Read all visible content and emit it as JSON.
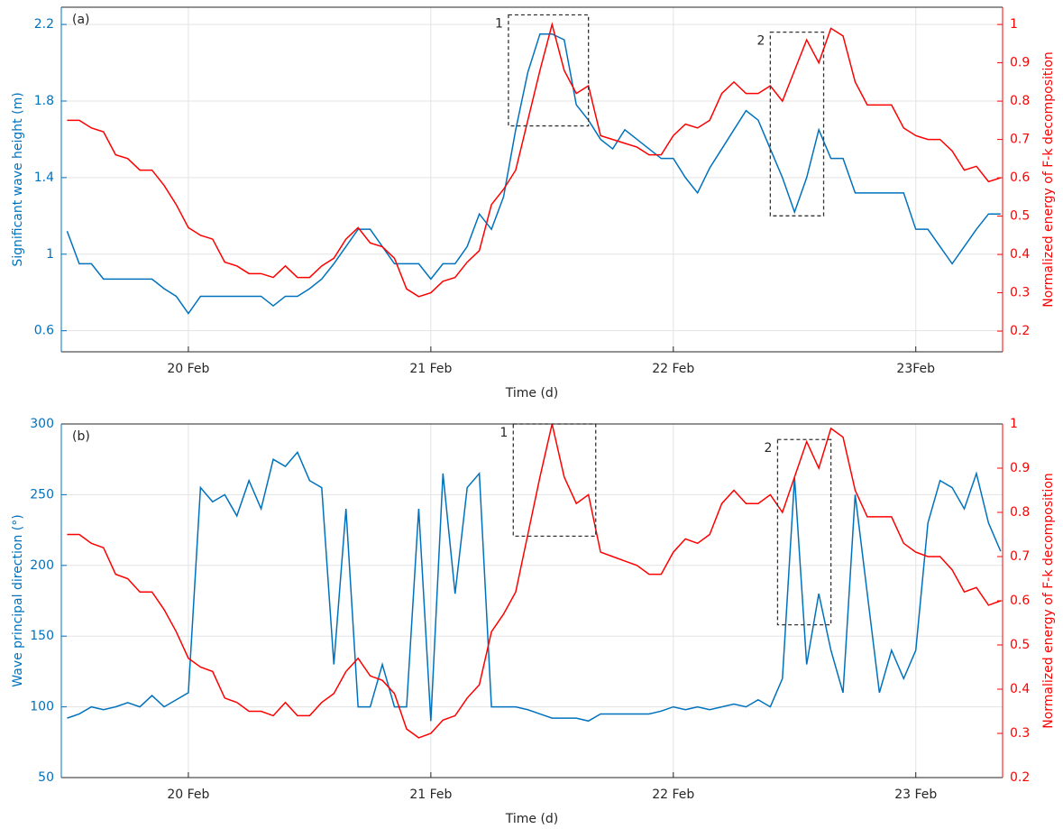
{
  "chart_data": [
    {
      "type": "line",
      "panel_label": "(a)",
      "xlabel": "Time (d)",
      "ylabel": "Significant wave height (m)",
      "y2label": "Normalized energy of F-k decomposition",
      "grid": true,
      "xlim": [
        19.476,
        23.358
      ],
      "xticks": [
        {
          "value": 20,
          "label": "20 Feb"
        },
        {
          "value": 21,
          "label": "21 Feb"
        },
        {
          "value": 22,
          "label": "22 Feb"
        },
        {
          "value": 23,
          "label": "23Feb"
        }
      ],
      "ylim": [
        0.49,
        2.29
      ],
      "yticks": [
        0.6,
        1,
        1.4,
        1.8,
        2.2
      ],
      "y2lim": [
        0.146,
        1.045
      ],
      "y2ticks": [
        0.2,
        0.3,
        0.4,
        0.5,
        0.6,
        0.7,
        0.8,
        0.9,
        1
      ],
      "x": [
        19.5,
        19.55,
        19.6,
        19.65,
        19.7,
        19.75,
        19.8,
        19.85,
        19.9,
        19.95,
        20,
        20.05,
        20.1,
        20.15,
        20.2,
        20.25,
        20.3,
        20.35,
        20.4,
        20.45,
        20.5,
        20.55,
        20.6,
        20.65,
        20.7,
        20.75,
        20.8,
        20.85,
        20.9,
        20.95,
        21,
        21.05,
        21.1,
        21.15,
        21.2,
        21.25,
        21.3,
        21.35,
        21.4,
        21.45,
        21.5,
        21.55,
        21.6,
        21.65,
        21.7,
        21.75,
        21.8,
        21.85,
        21.9,
        21.95,
        22,
        22.05,
        22.1,
        22.15,
        22.2,
        22.25,
        22.3,
        22.35,
        22.4,
        22.45,
        22.5,
        22.55,
        22.6,
        22.65,
        22.7,
        22.75,
        22.8,
        22.85,
        22.9,
        22.95,
        23,
        23.05,
        23.1,
        23.15,
        23.2,
        23.25,
        23.3,
        23.35
      ],
      "series": [
        {
          "color": "#0072bd",
          "axis": "y",
          "values": [
            1.12,
            0.95,
            0.95,
            0.87,
            0.87,
            0.87,
            0.87,
            0.87,
            0.82,
            0.78,
            0.69,
            0.78,
            0.78,
            0.78,
            0.78,
            0.78,
            0.78,
            0.73,
            0.78,
            0.78,
            0.82,
            0.87,
            0.95,
            1.04,
            1.13,
            1.13,
            1.04,
            0.95,
            0.95,
            0.95,
            0.87,
            0.95,
            0.95,
            1.04,
            1.21,
            1.13,
            1.3,
            1.65,
            1.95,
            2.15,
            2.15,
            2.12,
            1.78,
            1.7,
            1.6,
            1.55,
            1.65,
            1.6,
            1.55,
            1.5,
            1.5,
            1.4,
            1.32,
            1.45,
            1.55,
            1.65,
            1.75,
            1.7,
            1.55,
            1.4,
            1.22,
            1.4,
            1.65,
            1.5,
            1.5,
            1.32,
            1.32,
            1.32,
            1.32,
            1.32,
            1.13,
            1.13,
            1.04,
            0.95,
            1.04,
            1.13,
            1.21,
            1.21
          ]
        },
        {
          "color": "#ff0000",
          "axis": "y2",
          "values": [
            0.75,
            0.75,
            0.73,
            0.72,
            0.66,
            0.65,
            0.62,
            0.62,
            0.58,
            0.53,
            0.47,
            0.45,
            0.44,
            0.38,
            0.37,
            0.35,
            0.35,
            0.34,
            0.37,
            0.34,
            0.34,
            0.37,
            0.39,
            0.44,
            0.47,
            0.43,
            0.42,
            0.39,
            0.31,
            0.29,
            0.3,
            0.33,
            0.34,
            0.38,
            0.41,
            0.53,
            0.57,
            0.62,
            0.75,
            0.88,
            1.0,
            0.88,
            0.82,
            0.84,
            0.71,
            0.7,
            0.69,
            0.68,
            0.66,
            0.66,
            0.71,
            0.74,
            0.73,
            0.75,
            0.82,
            0.85,
            0.82,
            0.82,
            0.84,
            0.8,
            0.88,
            0.96,
            0.9,
            0.99,
            0.97,
            0.85,
            0.79,
            0.79,
            0.79,
            0.73,
            0.71,
            0.7,
            0.7,
            0.67,
            0.62,
            0.63,
            0.59,
            0.6
          ]
        }
      ],
      "annotations": [
        {
          "label": "1",
          "x": [
            21.32,
            21.65
          ],
          "y": [
            1.67,
            2.25
          ]
        },
        {
          "label": "2",
          "x": [
            22.4,
            22.62
          ],
          "y": [
            1.2,
            2.16
          ]
        }
      ]
    },
    {
      "type": "line",
      "panel_label": "(b)",
      "xlabel": "Time (d)",
      "ylabel": "Wave principal direction (°)",
      "y2label": "Normalized energy of F-k decomposition",
      "grid": true,
      "xlim": [
        19.476,
        23.358
      ],
      "xticks": [
        {
          "value": 20,
          "label": "20 Feb"
        },
        {
          "value": 21,
          "label": "21 Feb"
        },
        {
          "value": 22,
          "label": "22 Feb"
        },
        {
          "value": 23,
          "label": "23 Feb"
        }
      ],
      "ylim": [
        50,
        300
      ],
      "yticks": [
        50,
        100,
        150,
        200,
        250,
        300
      ],
      "y2lim": [
        0.2,
        1
      ],
      "y2ticks": [
        0.2,
        0.3,
        0.4,
        0.5,
        0.6,
        0.7,
        0.8,
        0.9,
        1
      ],
      "x": [
        19.5,
        19.55,
        19.6,
        19.65,
        19.7,
        19.75,
        19.8,
        19.85,
        19.9,
        19.95,
        20,
        20.05,
        20.1,
        20.15,
        20.2,
        20.25,
        20.3,
        20.35,
        20.4,
        20.45,
        20.5,
        20.55,
        20.6,
        20.65,
        20.7,
        20.75,
        20.8,
        20.85,
        20.9,
        20.95,
        21,
        21.05,
        21.1,
        21.15,
        21.2,
        21.25,
        21.3,
        21.35,
        21.4,
        21.45,
        21.5,
        21.55,
        21.6,
        21.65,
        21.7,
        21.75,
        21.8,
        21.85,
        21.9,
        21.95,
        22,
        22.05,
        22.1,
        22.15,
        22.2,
        22.25,
        22.3,
        22.35,
        22.4,
        22.45,
        22.5,
        22.55,
        22.6,
        22.65,
        22.7,
        22.75,
        22.8,
        22.85,
        22.9,
        22.95,
        23,
        23.05,
        23.1,
        23.15,
        23.2,
        23.25,
        23.3,
        23.35
      ],
      "series": [
        {
          "color": "#0072bd",
          "axis": "y",
          "values": [
            92,
            95,
            100,
            98,
            100,
            103,
            100,
            108,
            100,
            105,
            110,
            255,
            245,
            250,
            235,
            260,
            240,
            275,
            270,
            280,
            260,
            255,
            130,
            240,
            100,
            100,
            130,
            100,
            100,
            240,
            90,
            265,
            180,
            255,
            265,
            100,
            100,
            100,
            98,
            95,
            92,
            92,
            92,
            90,
            95,
            95,
            95,
            95,
            95,
            97,
            100,
            98,
            100,
            98,
            100,
            102,
            100,
            105,
            100,
            120,
            262,
            130,
            180,
            140,
            110,
            250,
            180,
            110,
            140,
            120,
            140,
            230,
            260,
            255,
            240,
            265,
            230,
            210
          ]
        },
        {
          "color": "#ff0000",
          "axis": "y2",
          "values": [
            0.75,
            0.75,
            0.73,
            0.72,
            0.66,
            0.65,
            0.62,
            0.62,
            0.58,
            0.53,
            0.47,
            0.45,
            0.44,
            0.38,
            0.37,
            0.35,
            0.35,
            0.34,
            0.37,
            0.34,
            0.34,
            0.37,
            0.39,
            0.44,
            0.47,
            0.43,
            0.42,
            0.39,
            0.31,
            0.29,
            0.3,
            0.33,
            0.34,
            0.38,
            0.41,
            0.53,
            0.57,
            0.62,
            0.75,
            0.88,
            1.0,
            0.88,
            0.82,
            0.84,
            0.71,
            0.7,
            0.69,
            0.68,
            0.66,
            0.66,
            0.71,
            0.74,
            0.73,
            0.75,
            0.82,
            0.85,
            0.82,
            0.82,
            0.84,
            0.8,
            0.88,
            0.96,
            0.9,
            0.99,
            0.97,
            0.85,
            0.79,
            0.79,
            0.79,
            0.73,
            0.71,
            0.7,
            0.7,
            0.67,
            0.62,
            0.63,
            0.59,
            0.6
          ]
        }
      ],
      "annotations": [
        {
          "label": "1",
          "x": [
            21.34,
            21.68
          ],
          "y": [
            220.7,
            300
          ]
        },
        {
          "label": "2",
          "x": [
            22.43,
            22.65
          ],
          "y": [
            158,
            289
          ]
        }
      ]
    }
  ]
}
